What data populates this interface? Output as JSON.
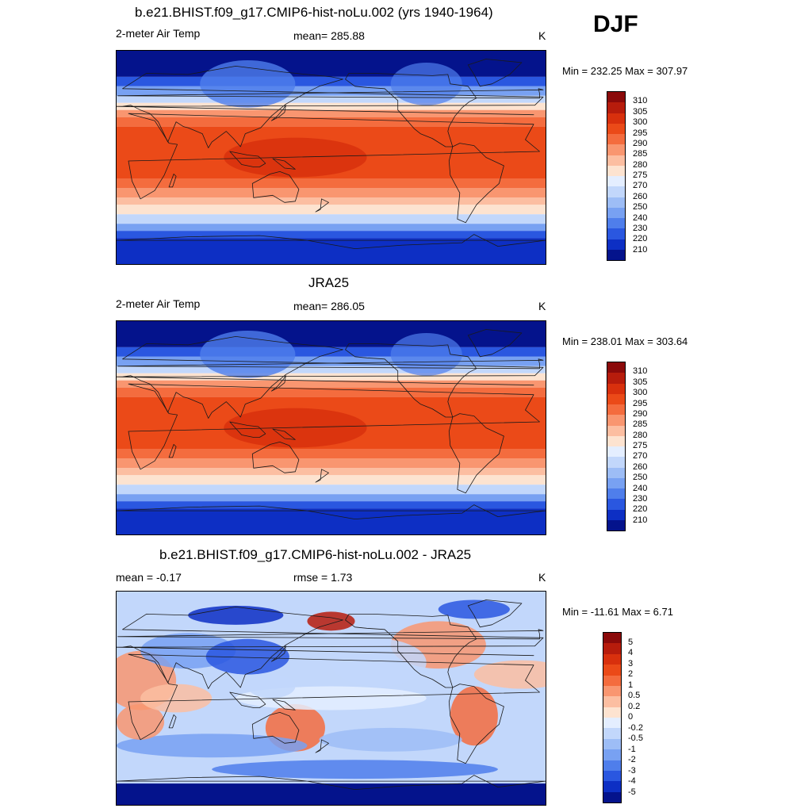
{
  "season": "DJF",
  "panels": [
    {
      "title": "b.e21.BHIST.f09_g17.CMIP6-hist-noLu.002 (yrs 1940-1964)",
      "left_label": "2-meter Air Temp",
      "center_label": "mean= 285.88",
      "units": "K",
      "minmax": "Min = 232.25 Max = 307.97",
      "kind": "abs",
      "colorbar_labels": [
        "310",
        "305",
        "300",
        "295",
        "290",
        "285",
        "280",
        "275",
        "270",
        "260",
        "250",
        "240",
        "230",
        "220",
        "210"
      ]
    },
    {
      "title": "JRA25",
      "left_label": "2-meter Air Temp",
      "center_label": "mean= 286.05",
      "units": "K",
      "minmax": "Min = 238.01 Max = 303.64",
      "kind": "abs",
      "colorbar_labels": [
        "310",
        "305",
        "300",
        "295",
        "290",
        "285",
        "280",
        "275",
        "270",
        "260",
        "250",
        "240",
        "230",
        "220",
        "210"
      ]
    },
    {
      "title": "b.e21.BHIST.f09_g17.CMIP6-hist-noLu.002 - JRA25",
      "left_label": "mean =  -0.17",
      "center_label": "rmse =   1.73",
      "units": "K",
      "minmax": "Min = -11.61 Max =   6.71",
      "kind": "diff",
      "colorbar_labels": [
        "5",
        "4",
        "3",
        "2",
        "1",
        "0.5",
        "0.2",
        "0",
        "-0.2",
        "-0.5",
        "-1",
        "-2",
        "-3",
        "-4",
        "-5"
      ]
    }
  ],
  "colors": {
    "scale": [
      "#8b0a0a",
      "#b71c0c",
      "#d8300d",
      "#eb4a18",
      "#f46c3e",
      "#f99670",
      "#fcbea1",
      "#fde3d0",
      "#e4eeff",
      "#c2d7fb",
      "#9dbdf6",
      "#78a1f2",
      "#4f7eeb",
      "#2a57e0",
      "#0d2fc4",
      "#04138c"
    ],
    "land_outline": "#1a1a1a"
  }
}
